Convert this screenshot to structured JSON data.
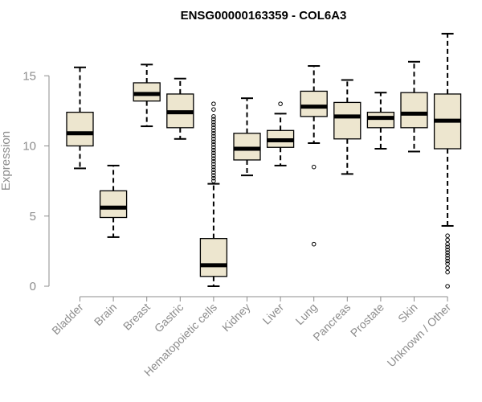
{
  "chart_data": {
    "type": "box",
    "title": "ENSG00000163359 - COL6A3",
    "xlabel": "",
    "ylabel": "Expression",
    "ylim": [
      0,
      18
    ],
    "yticks": [
      0,
      5,
      10,
      15
    ],
    "grid": false,
    "box_color": "#ede6cf",
    "line_color": "#000000",
    "axis_color": "#8c8c8c",
    "categories": [
      "Bladder",
      "Brain",
      "Breast",
      "Gastric",
      "Hematopoietic cells",
      "Kidney",
      "Liver",
      "Lung",
      "Pancreas",
      "Prostate",
      "Skin",
      "Unknown / Other"
    ],
    "boxes": [
      {
        "min": 8.4,
        "q1": 10.0,
        "median": 10.9,
        "q3": 12.4,
        "max": 15.6,
        "outliers": []
      },
      {
        "min": 3.5,
        "q1": 4.9,
        "median": 5.6,
        "q3": 6.8,
        "max": 8.6,
        "outliers": []
      },
      {
        "min": 11.4,
        "q1": 13.2,
        "median": 13.7,
        "q3": 14.5,
        "max": 15.8,
        "outliers": []
      },
      {
        "min": 10.5,
        "q1": 11.3,
        "median": 12.4,
        "q3": 13.7,
        "max": 14.8,
        "outliers": []
      },
      {
        "min": 0.0,
        "q1": 0.7,
        "median": 1.5,
        "q3": 3.4,
        "max": 7.3,
        "outliers": [
          7.5,
          7.7,
          7.9,
          8.1,
          8.3,
          8.5,
          8.7,
          8.9,
          9.1,
          9.3,
          9.5,
          9.7,
          9.9,
          10.1,
          10.3,
          10.5,
          10.7,
          10.9,
          11.1,
          11.3,
          11.5,
          11.7,
          11.9,
          12.1,
          12.6,
          13.0
        ]
      },
      {
        "min": 7.9,
        "q1": 9.0,
        "median": 9.8,
        "q3": 10.9,
        "max": 13.4,
        "outliers": []
      },
      {
        "min": 8.6,
        "q1": 9.9,
        "median": 10.4,
        "q3": 11.1,
        "max": 12.3,
        "outliers": [
          13.0
        ]
      },
      {
        "min": 10.2,
        "q1": 12.1,
        "median": 12.8,
        "q3": 13.9,
        "max": 15.7,
        "outliers": [
          8.5,
          3.0
        ]
      },
      {
        "min": 8.0,
        "q1": 10.5,
        "median": 12.1,
        "q3": 13.1,
        "max": 14.7,
        "outliers": []
      },
      {
        "min": 9.8,
        "q1": 11.3,
        "median": 12.0,
        "q3": 12.4,
        "max": 13.8,
        "outliers": []
      },
      {
        "min": 9.6,
        "q1": 11.3,
        "median": 12.3,
        "q3": 13.8,
        "max": 16.0,
        "outliers": []
      },
      {
        "min": 4.3,
        "q1": 9.8,
        "median": 11.8,
        "q3": 13.7,
        "max": 18.0,
        "outliers": [
          0.0,
          1.0,
          1.3,
          1.6,
          1.8,
          2.0,
          2.2,
          2.4,
          2.6,
          2.8,
          3.0,
          3.3,
          3.6
        ]
      }
    ]
  }
}
